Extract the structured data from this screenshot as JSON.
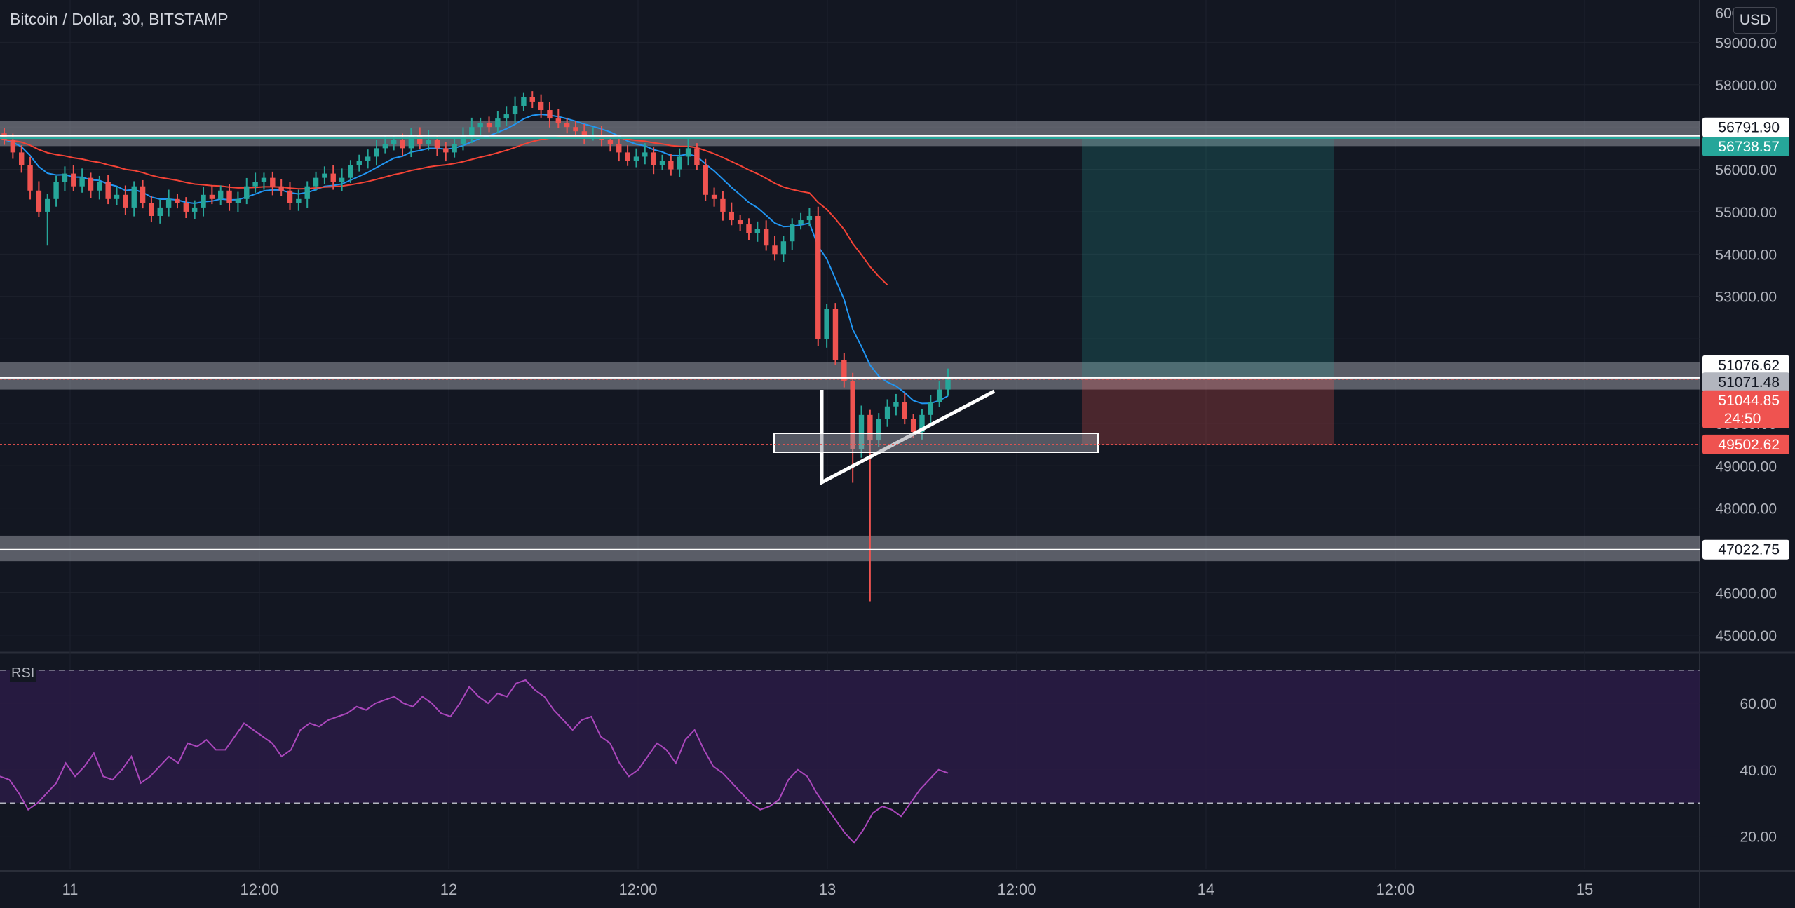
{
  "header": {
    "title": "Bitcoin / Dollar, 30, BITSTAMP",
    "currency": "USD",
    "top_tick": "60000.00"
  },
  "rsi": {
    "label": "RSI"
  },
  "colors": {
    "background": "#131722",
    "up": "#26a69a",
    "down": "#ef5350",
    "ema_fast": "#2196f3",
    "ema_slow": "#f44336",
    "rsi_line": "#ab47bc",
    "rsi_band": "#2a1b45",
    "zone": "#9598a1",
    "grid": "#1e222d"
  },
  "chart_data": [
    {
      "type": "candlestick",
      "title": "Bitcoin / Dollar, 30, BITSTAMP",
      "ylim": [
        44600,
        60000
      ],
      "y_ticks": [
        45000,
        46000,
        47000,
        48000,
        49000,
        50000,
        51000,
        52000,
        53000,
        54000,
        55000,
        56000,
        57000,
        58000,
        59000
      ],
      "y_tick_labels": [
        "45000.00",
        "46000.00",
        "47000.00",
        "48000.00",
        "49000.00",
        "50000.00",
        "",
        "",
        "53000.00",
        "54000.00",
        "55000.00",
        "56000.00",
        "",
        "58000.00",
        "59000.00"
      ],
      "x_ticks": [
        {
          "label": "11",
          "t": 0.5
        },
        {
          "label": "12:00",
          "t": 1.0
        },
        {
          "label": "12",
          "t": 1.5
        },
        {
          "label": "12:00",
          "t": 2.0
        },
        {
          "label": "13",
          "t": 2.5
        },
        {
          "label": "12:00",
          "t": 3.0
        },
        {
          "label": "14",
          "t": 3.5
        },
        {
          "label": "12:00",
          "t": 4.0
        },
        {
          "label": "15",
          "t": 4.5
        }
      ],
      "series_ohlc_close": [
        56700,
        56400,
        56100,
        55500,
        55000,
        55300,
        55700,
        55900,
        55600,
        55800,
        55500,
        55700,
        55300,
        55400,
        55100,
        55600,
        55200,
        54900,
        55100,
        55300,
        55200,
        55000,
        55100,
        55400,
        55300,
        55500,
        55200,
        55300,
        55600,
        55700,
        55800,
        55600,
        55500,
        55200,
        55300,
        55600,
        55800,
        55900,
        55700,
        55800,
        56100,
        56200,
        56300,
        56500,
        56600,
        56700,
        56500,
        56800,
        56600,
        56700,
        56500,
        56400,
        56600,
        56800,
        57000,
        57100,
        57000,
        57200,
        57300,
        57500,
        57700,
        57600,
        57400,
        57200,
        57100,
        57000,
        56900,
        56800,
        56800,
        56700,
        56600,
        56400,
        56200,
        56300,
        56400,
        56100,
        56200,
        56000,
        56300,
        56500,
        56100,
        55400,
        55300,
        55000,
        54800,
        54700,
        54500,
        54600,
        54200,
        54000,
        54300,
        54700,
        54800,
        54900,
        52000,
        52700,
        51500,
        51000,
        49400,
        50200,
        49600,
        50100,
        50400,
        50500,
        50100,
        49800,
        50200,
        50500,
        50800,
        51076
      ],
      "price_lines": [
        {
          "label": "56791.90",
          "value": 56791.9,
          "style": "white"
        },
        {
          "label": "56738.57",
          "value": 56738.57,
          "style": "green"
        },
        {
          "label": "51076.62",
          "value": 51076.62,
          "style": "white"
        },
        {
          "label": "51071.48",
          "value": 51071.48,
          "style": "gray"
        },
        {
          "label": "51044.85",
          "value": 51044.85,
          "style": "red",
          "sub": "24:50"
        },
        {
          "label": "49502.62",
          "value": 49502.62,
          "style": "red"
        },
        {
          "label": "47022.75",
          "value": 47022.75,
          "style": "white"
        }
      ],
      "zones": [
        {
          "from": 56550,
          "to": 57150
        },
        {
          "from": 50800,
          "to": 51450
        },
        {
          "from": 46750,
          "to": 47350
        }
      ],
      "position": {
        "entry": 51076.62,
        "target": 56738.57,
        "stop": 49502.62
      }
    },
    {
      "type": "line",
      "title": "RSI",
      "ylim": [
        10,
        75
      ],
      "y_ticks": [
        20,
        40,
        60
      ],
      "y_tick_labels": [
        "20.00",
        "40.00",
        "60.00"
      ],
      "bands": [
        30,
        70
      ],
      "values": [
        38,
        37,
        33,
        28,
        30,
        33,
        36,
        42,
        38,
        41,
        45,
        38,
        37,
        40,
        44,
        36,
        38,
        41,
        44,
        42,
        48,
        47,
        49,
        46,
        46,
        50,
        54,
        52,
        50,
        48,
        44,
        46,
        52,
        54,
        53,
        55,
        56,
        57,
        59,
        58,
        60,
        61,
        62,
        60,
        59,
        62,
        60,
        57,
        56,
        60,
        65,
        62,
        60,
        63,
        62,
        66,
        67,
        64,
        62,
        58,
        55,
        52,
        55,
        56,
        50,
        48,
        42,
        38,
        40,
        44,
        48,
        46,
        42,
        49,
        52,
        46,
        41,
        39,
        36,
        33,
        30,
        28,
        29,
        31,
        37,
        40,
        38,
        33,
        29,
        25,
        21,
        18,
        22,
        27,
        29,
        28,
        26,
        30,
        34,
        37,
        40,
        39
      ]
    }
  ]
}
